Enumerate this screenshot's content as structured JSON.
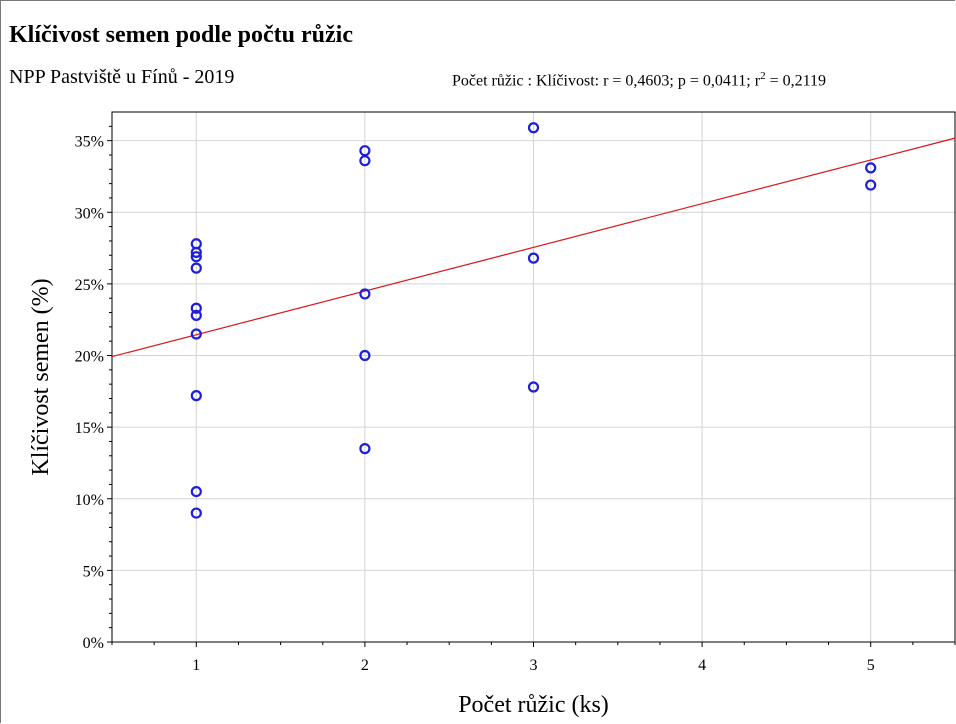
{
  "header": {
    "title": "Klíčivost semen podle počtu růžic",
    "subtitle": "NPP Pastviště u Fínů - 2019",
    "stats_prefix": "Počet růžic : Klíčivost: r = 0,4603; p = 0,0411; r",
    "stats_sup": "2",
    "stats_suffix": " = 0,2119"
  },
  "chart_data": {
    "type": "scatter",
    "title": "Klíčivost semen podle počtu růžic",
    "subtitle": "NPP Pastviště u Fínů - 2019",
    "xlabel": "Počet růžic (ks)",
    "ylabel": "Klíčivost semen (%)",
    "xlim": [
      0.5,
      5.5
    ],
    "ylim": [
      0,
      37
    ],
    "xticks": [
      1,
      2,
      3,
      4,
      5
    ],
    "yticks": [
      0,
      5,
      10,
      15,
      20,
      25,
      30,
      35
    ],
    "ytick_labels": [
      "0%",
      "5%",
      "10%",
      "15%",
      "20%",
      "25%",
      "30%",
      "35%"
    ],
    "grid": true,
    "points": [
      {
        "x": 1,
        "y": 27.8
      },
      {
        "x": 1,
        "y": 27.2
      },
      {
        "x": 1,
        "y": 26.9
      },
      {
        "x": 1,
        "y": 26.1
      },
      {
        "x": 1,
        "y": 23.3
      },
      {
        "x": 1,
        "y": 22.8
      },
      {
        "x": 1,
        "y": 21.5
      },
      {
        "x": 1,
        "y": 17.2
      },
      {
        "x": 1,
        "y": 10.5
      },
      {
        "x": 1,
        "y": 9.0
      },
      {
        "x": 2,
        "y": 34.3
      },
      {
        "x": 2,
        "y": 33.6
      },
      {
        "x": 2,
        "y": 24.3
      },
      {
        "x": 2,
        "y": 20.0
      },
      {
        "x": 2,
        "y": 13.5
      },
      {
        "x": 3,
        "y": 35.9
      },
      {
        "x": 3,
        "y": 26.8
      },
      {
        "x": 3,
        "y": 17.8
      },
      {
        "x": 5,
        "y": 33.1
      },
      {
        "x": 5,
        "y": 31.9
      }
    ],
    "fit_line": {
      "intercept": 18.4,
      "slope": 3.05
    },
    "point_color": "#1f1fd6",
    "line_color": "#d81818",
    "grid_color": "#d4d4d4"
  }
}
